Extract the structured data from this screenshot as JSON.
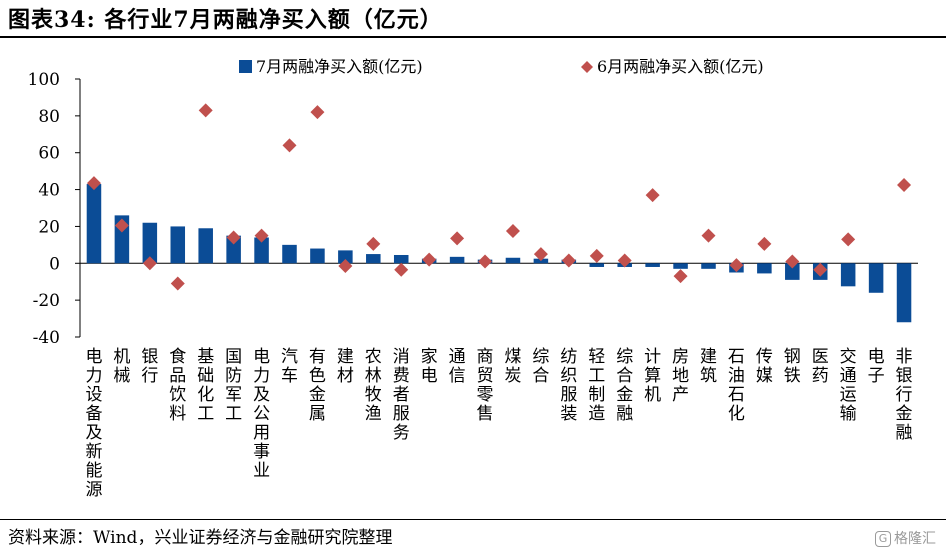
{
  "figure": {
    "title": "图表34:  各行业7月两融净买入额（亿元）",
    "source": "资料来源：Wind，兴业证券经济与金融研究院整理",
    "watermark": "格隆汇",
    "watermark_icon": "gelonghui-logo-icon"
  },
  "chart_data": {
    "type": "bar",
    "title": "",
    "xlabel": "",
    "ylabel": "",
    "ylim": [
      -40,
      100
    ],
    "yticks": [
      -40,
      -20,
      0,
      20,
      40,
      60,
      80,
      100
    ],
    "grid": false,
    "legend_position": "top",
    "categories": [
      "电力设备及新能源",
      "机械",
      "银行",
      "食品饮料",
      "基础化工",
      "国防军工",
      "电力及公用事业",
      "汽车",
      "有色金属",
      "建材",
      "农林牧渔",
      "消费者服务",
      "家电",
      "通信",
      "商贸零售",
      "煤炭",
      "综合",
      "纺织服装",
      "轻工制造",
      "综合金融",
      "计算机",
      "房地产",
      "建筑",
      "石油石化",
      "传媒",
      "钢铁",
      "医药",
      "交通运输",
      "电子",
      "非银行金融"
    ],
    "series": [
      {
        "name": "7月两融净买入额(亿元)",
        "type": "bar",
        "color": "#0b4c96",
        "values": [
          43,
          26,
          22,
          20,
          19,
          15,
          14,
          10,
          8,
          7,
          5,
          4.5,
          2.5,
          3.5,
          2,
          3,
          2.5,
          2,
          -2,
          -2,
          -2,
          -3,
          -3,
          -5,
          -5.5,
          -9,
          -9,
          -12.5,
          -16,
          -32
        ]
      },
      {
        "name": "6月两融净买入额(亿元)",
        "type": "marker",
        "color": "#c0504d",
        "values": [
          43.5,
          20.5,
          0,
          -11,
          83,
          14,
          15,
          64,
          82,
          -1.5,
          10.5,
          -3.5,
          2,
          13.5,
          1,
          17.5,
          5,
          1.5,
          4,
          1.5,
          37,
          -7,
          15,
          -1,
          10.5,
          1,
          -3.5,
          13,
          null,
          42.5
        ]
      }
    ]
  }
}
